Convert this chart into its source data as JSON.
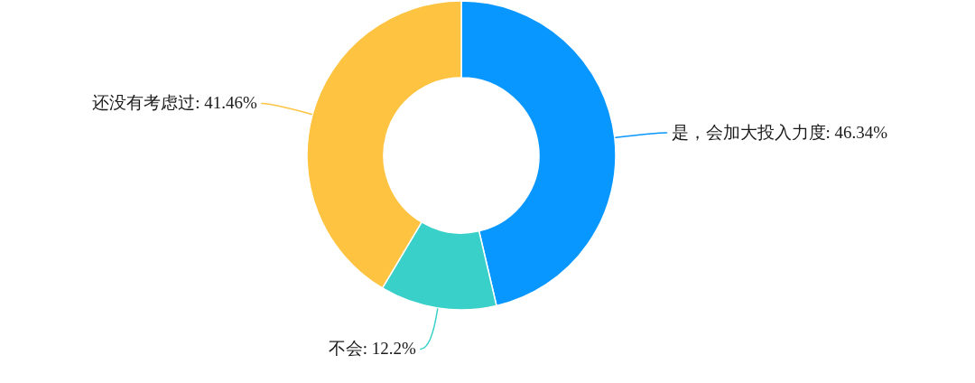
{
  "chart_data": {
    "type": "donut",
    "categories": [
      "是，会加大投入力度",
      "不会",
      "还没有考虑过"
    ],
    "values": [
      46.34,
      12.2,
      41.46
    ],
    "value_labels": [
      "46.34%",
      "12.2%",
      "41.46%"
    ],
    "colors": [
      "#0797fe",
      "#38d0c8",
      "#fdc341"
    ]
  }
}
